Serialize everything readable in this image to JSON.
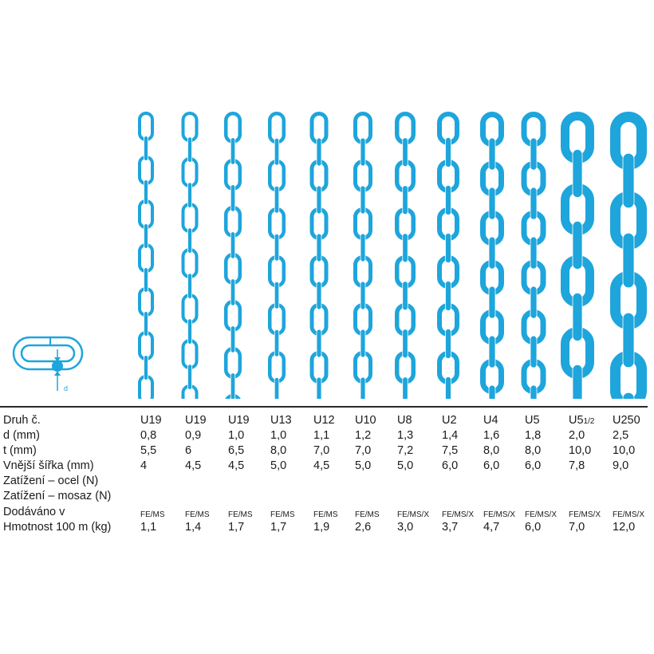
{
  "colors": {
    "chain": "#1ea5dc",
    "text": "#1a1a1a",
    "rule": "#2a2a2a"
  },
  "diagram": {
    "dimension_label": "d"
  },
  "rows": [
    {
      "key": "druh",
      "label": "Druh č."
    },
    {
      "key": "d",
      "label": "d (mm)"
    },
    {
      "key": "t",
      "label": "t (mm)"
    },
    {
      "key": "sirka",
      "label": "Vnější šířka (mm)"
    },
    {
      "key": "ocel",
      "label": "Zatížení – ocel (N)"
    },
    {
      "key": "mosaz",
      "label": "Zatížení – mosaz (N)"
    },
    {
      "key": "dodavano",
      "label": "Dodáváno v"
    },
    {
      "key": "hmotnost",
      "label": "Hmotnost 100 m (kg)"
    }
  ],
  "columns": [
    {
      "druh": "U19",
      "druh_sub": "",
      "d": "0,8",
      "t": "5,5",
      "sirka": "4",
      "ocel": "",
      "mosaz": "",
      "dodavano": "FE/MS",
      "hmotnost": "1,1"
    },
    {
      "druh": "U19",
      "druh_sub": "",
      "d": "0,9",
      "t": "6",
      "sirka": "4,5",
      "ocel": "",
      "mosaz": "",
      "dodavano": "FE/MS",
      "hmotnost": "1,4"
    },
    {
      "druh": "U19",
      "druh_sub": "",
      "d": "1,0",
      "t": "6,5",
      "sirka": "4,5",
      "ocel": "",
      "mosaz": "",
      "dodavano": "FE/MS",
      "hmotnost": "1,7"
    },
    {
      "druh": "U13",
      "druh_sub": "",
      "d": "1,0",
      "t": "8,0",
      "sirka": "5,0",
      "ocel": "",
      "mosaz": "",
      "dodavano": "FE/MS",
      "hmotnost": "1,7"
    },
    {
      "druh": "U12",
      "druh_sub": "",
      "d": "1,1",
      "t": "7,0",
      "sirka": "4,5",
      "ocel": "",
      "mosaz": "",
      "dodavano": "FE/MS",
      "hmotnost": "1,9"
    },
    {
      "druh": "U10",
      "druh_sub": "",
      "d": "1,2",
      "t": "7,0",
      "sirka": "5,0",
      "ocel": "",
      "mosaz": "",
      "dodavano": "FE/MS",
      "hmotnost": "2,6"
    },
    {
      "druh": "U8",
      "druh_sub": "",
      "d": "1,3",
      "t": "7,2",
      "sirka": "5,0",
      "ocel": "",
      "mosaz": "",
      "dodavano": "FE/MS/X",
      "hmotnost": "3,0"
    },
    {
      "druh": "U2",
      "druh_sub": "",
      "d": "1,4",
      "t": "7,5",
      "sirka": "6,0",
      "ocel": "",
      "mosaz": "",
      "dodavano": "FE/MS/X",
      "hmotnost": "3,7"
    },
    {
      "druh": "U4",
      "druh_sub": "",
      "d": "1,6",
      "t": "8,0",
      "sirka": "6,0",
      "ocel": "",
      "mosaz": "",
      "dodavano": "FE/MS/X",
      "hmotnost": "4,7"
    },
    {
      "druh": "U5",
      "druh_sub": "",
      "d": "1,8",
      "t": "8,0",
      "sirka": "6,0",
      "ocel": "",
      "mosaz": "",
      "dodavano": "FE/MS/X",
      "hmotnost": "6,0"
    },
    {
      "druh": "U5",
      "druh_sub": "1/2",
      "d": "2,0",
      "t": "10,0",
      "sirka": "7,8",
      "ocel": "",
      "mosaz": "",
      "dodavano": "FE/MS/X",
      "hmotnost": "7,0"
    },
    {
      "druh": "U250",
      "druh_sub": "",
      "d": "2,5",
      "t": "10,0",
      "sirka": "9,0",
      "ocel": "",
      "mosaz": "",
      "dodavano": "FE/MS/X",
      "hmotnost": "12,0"
    }
  ]
}
